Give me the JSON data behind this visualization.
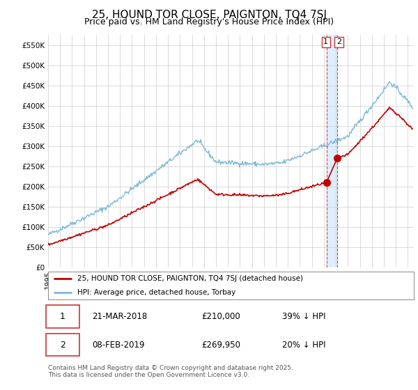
{
  "title": "25, HOUND TOR CLOSE, PAIGNTON, TQ4 7SJ",
  "subtitle": "Price paid vs. HM Land Registry's House Price Index (HPI)",
  "xlim_start": 1995.0,
  "xlim_end": 2025.5,
  "ylim": [
    0,
    575000
  ],
  "yticks": [
    0,
    50000,
    100000,
    150000,
    200000,
    250000,
    300000,
    350000,
    400000,
    450000,
    500000,
    550000
  ],
  "ytick_labels": [
    "£0",
    "£50K",
    "£100K",
    "£150K",
    "£200K",
    "£250K",
    "£300K",
    "£350K",
    "£400K",
    "£450K",
    "£500K",
    "£550K"
  ],
  "sale1_x": 2018.22,
  "sale1_y": 210000,
  "sale2_x": 2019.11,
  "sale2_y": 269950,
  "legend_line1": "25, HOUND TOR CLOSE, PAIGNTON, TQ4 7SJ (detached house)",
  "legend_line2": "HPI: Average price, detached house, Torbay",
  "hpi_color": "#7ab8d9",
  "price_color": "#c00000",
  "shade_color": "#ddeeff",
  "background_color": "#ffffff",
  "grid_color": "#cccccc",
  "title_fontsize": 11,
  "subtitle_fontsize": 9,
  "tick_fontsize": 7.5,
  "footer": "Contains HM Land Registry data © Crown copyright and database right 2025.\nThis data is licensed under the Open Government Licence v3.0."
}
